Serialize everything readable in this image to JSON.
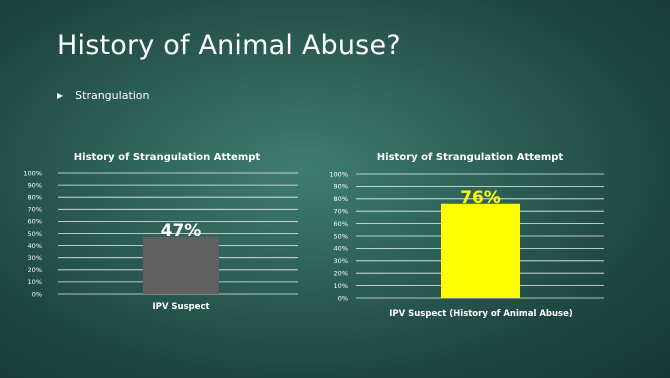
{
  "slide": {
    "title": "History of Animal Abuse?",
    "bullet": "Strangulation"
  },
  "chart_data": [
    {
      "type": "bar",
      "title": "History of Strangulation Attempt",
      "categories": [
        "IPV Suspect"
      ],
      "values": [
        47
      ],
      "data_labels": [
        "47%"
      ],
      "ylim": [
        0,
        100
      ],
      "y_ticks": [
        "0%",
        "10%",
        "20%",
        "30%",
        "40%",
        "50%",
        "60%",
        "70%",
        "80%",
        "90%",
        "100%"
      ],
      "grid": true,
      "bar_color": "#606060",
      "label_color": "#ffffff"
    },
    {
      "type": "bar",
      "title": "History of Strangulation Attempt",
      "categories": [
        "IPV Suspect (History of Animal Abuse)"
      ],
      "values": [
        76
      ],
      "data_labels": [
        "76%"
      ],
      "ylim": [
        0,
        100
      ],
      "y_ticks": [
        "0%",
        "10%",
        "20%",
        "30%",
        "40%",
        "50%",
        "60%",
        "70%",
        "80%",
        "90%",
        "100%"
      ],
      "grid": true,
      "bar_color": "#ffff00",
      "label_color": "#ffff00"
    }
  ]
}
